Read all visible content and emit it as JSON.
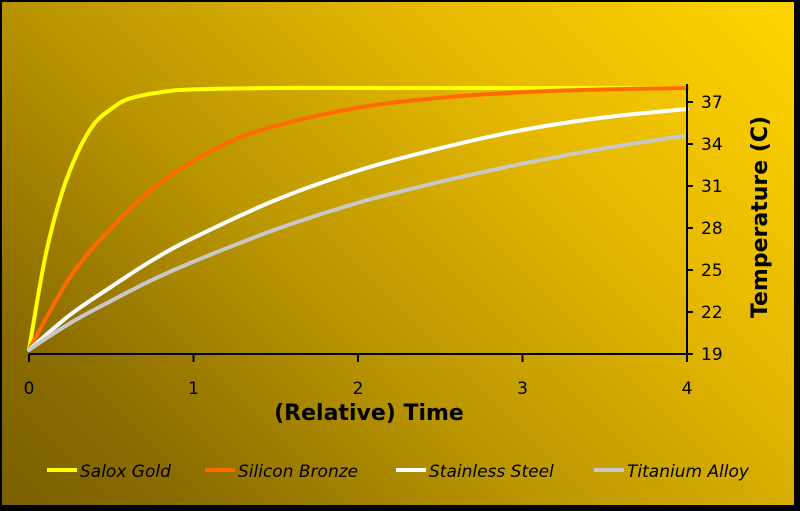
{
  "chart_data": {
    "type": "line",
    "title": "",
    "xlabel": "(Relative) Time",
    "ylabel": "Temperature (C)",
    "xlim": [
      0,
      4
    ],
    "ylim": [
      19,
      38
    ],
    "x_ticks": [
      "0",
      "1",
      "2",
      "3",
      "4"
    ],
    "y_ticks": [
      "19",
      "22",
      "25",
      "28",
      "31",
      "34",
      "37"
    ],
    "y_tick_values": [
      19,
      22,
      25,
      28,
      31,
      34,
      37
    ],
    "y_axis_position": "right",
    "grid": false,
    "legend_position": "bottom",
    "series": [
      {
        "name": "Salox Gold",
        "color": "#ffff00",
        "x": [
          0,
          0.1,
          0.2,
          0.3,
          0.4,
          0.5,
          0.6,
          0.8,
          1.0,
          1.5,
          2.0,
          3.0,
          4.0
        ],
        "y": [
          19.3,
          26.0,
          30.5,
          33.5,
          35.5,
          36.5,
          37.2,
          37.7,
          37.9,
          38.0,
          38.0,
          38.0,
          38.0
        ]
      },
      {
        "name": "Silicon Bronze",
        "color": "#ff6a00",
        "x": [
          0,
          0.25,
          0.5,
          0.75,
          1.0,
          1.25,
          1.5,
          2.0,
          2.5,
          3.0,
          3.5,
          4.0
        ],
        "y": [
          19.3,
          24.5,
          28.0,
          30.8,
          32.8,
          34.3,
          35.3,
          36.6,
          37.3,
          37.7,
          37.9,
          38.0
        ]
      },
      {
        "name": "Stainless Steel",
        "color": "#ffffff",
        "x": [
          0,
          0.25,
          0.5,
          0.75,
          1.0,
          1.5,
          2.0,
          2.5,
          3.0,
          3.5,
          4.0
        ],
        "y": [
          19.3,
          21.8,
          23.8,
          25.7,
          27.3,
          30.0,
          32.1,
          33.7,
          35.0,
          35.9,
          36.5
        ]
      },
      {
        "name": "Titanium Alloy",
        "color": "#c8c8c8",
        "x": [
          0,
          0.25,
          0.5,
          0.75,
          1.0,
          1.5,
          2.0,
          2.5,
          3.0,
          3.5,
          4.0
        ],
        "y": [
          19.3,
          21.2,
          22.8,
          24.3,
          25.6,
          27.9,
          29.8,
          31.3,
          32.6,
          33.7,
          34.6
        ]
      }
    ]
  }
}
